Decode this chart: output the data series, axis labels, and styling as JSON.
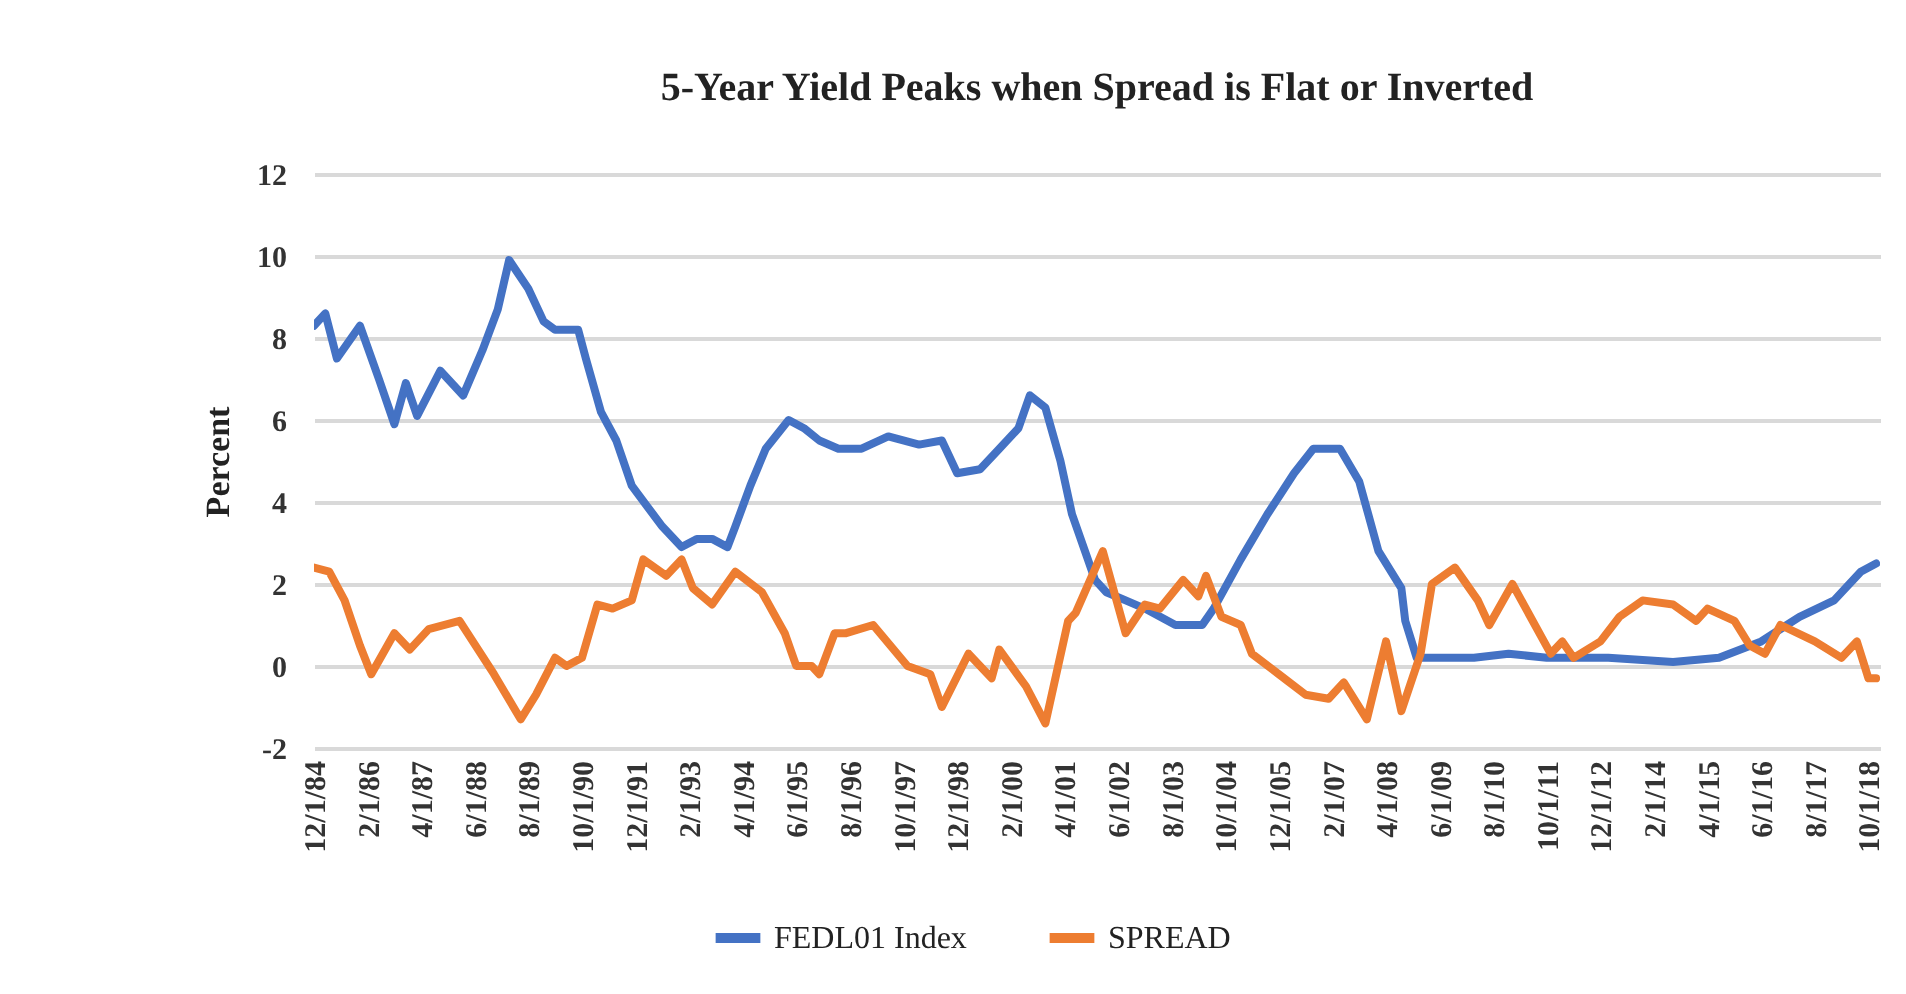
{
  "chart_data": {
    "type": "line",
    "title": "5-Year Yield Peaks when Spread is Flat or Inverted",
    "ylabel": "Percent",
    "xlim": [
      "1984-12",
      "2019-01"
    ],
    "ylim": [
      -2,
      12
    ],
    "yticks": [
      -2,
      0,
      2,
      4,
      6,
      8,
      10,
      12
    ],
    "xticks": [
      {
        "value": "1984-12-01",
        "label": "12/1/84"
      },
      {
        "value": "1986-02-01",
        "label": "2/1/86"
      },
      {
        "value": "1987-04-01",
        "label": "4/1/87"
      },
      {
        "value": "1988-06-01",
        "label": "6/1/88"
      },
      {
        "value": "1989-08-01",
        "label": "8/1/89"
      },
      {
        "value": "1990-10-01",
        "label": "10/1/90"
      },
      {
        "value": "1991-12-01",
        "label": "12/1/91"
      },
      {
        "value": "1993-02-01",
        "label": "2/1/93"
      },
      {
        "value": "1994-04-01",
        "label": "4/1/94"
      },
      {
        "value": "1995-06-01",
        "label": "6/1/95"
      },
      {
        "value": "1996-08-01",
        "label": "8/1/96"
      },
      {
        "value": "1997-10-01",
        "label": "10/1/97"
      },
      {
        "value": "1998-12-01",
        "label": "12/1/98"
      },
      {
        "value": "2000-02-01",
        "label": "2/1/00"
      },
      {
        "value": "2001-04-01",
        "label": "4/1/01"
      },
      {
        "value": "2002-06-01",
        "label": "6/1/02"
      },
      {
        "value": "2003-08-01",
        "label": "8/1/03"
      },
      {
        "value": "2004-10-01",
        "label": "10/1/04"
      },
      {
        "value": "2005-12-01",
        "label": "12/1/05"
      },
      {
        "value": "2007-02-01",
        "label": "2/1/07"
      },
      {
        "value": "2008-04-01",
        "label": "4/1/08"
      },
      {
        "value": "2009-06-01",
        "label": "6/1/09"
      },
      {
        "value": "2010-08-01",
        "label": "8/1/10"
      },
      {
        "value": "2011-10-01",
        "label": "10/1/11"
      },
      {
        "value": "2012-12-01",
        "label": "12/1/12"
      },
      {
        "value": "2014-02-01",
        "label": "2/1/14"
      },
      {
        "value": "2015-04-01",
        "label": "4/1/15"
      },
      {
        "value": "2016-06-01",
        "label": "6/1/16"
      },
      {
        "value": "2017-08-01",
        "label": "8/1/17"
      },
      {
        "value": "2018-10-01",
        "label": "10/1/18"
      }
    ],
    "grid": "y",
    "legend": "bottom",
    "line_style": "solid",
    "series": [
      {
        "name": "FEDL01 Index",
        "color": "#4472c4",
        "x": [
          "1984-12",
          "1985-03",
          "1985-06",
          "1985-12",
          "1986-05",
          "1986-09",
          "1986-12",
          "1987-03",
          "1987-09",
          "1988-03",
          "1988-08",
          "1988-12",
          "1989-03",
          "1989-08",
          "1989-12",
          "1990-03",
          "1990-09",
          "1990-11",
          "1991-03",
          "1991-07",
          "1991-11",
          "1992-03",
          "1992-07",
          "1992-12",
          "1993-04",
          "1993-08",
          "1993-12",
          "1994-02",
          "1994-06",
          "1994-10",
          "1995-04",
          "1995-08",
          "1995-12",
          "1996-05",
          "1996-11",
          "1997-06",
          "1998-02",
          "1998-08",
          "1998-12",
          "1999-06",
          "1999-11",
          "2000-04",
          "2000-07",
          "2000-11",
          "2001-03",
          "2001-06",
          "2001-12",
          "2002-03",
          "2002-08",
          "2003-01",
          "2003-09",
          "2004-04",
          "2004-07",
          "2005-02",
          "2005-09",
          "2006-04",
          "2006-09",
          "2007-04",
          "2007-09",
          "2008-02",
          "2008-08",
          "2008-09",
          "2008-12",
          "2009-06",
          "2010-03",
          "2010-12",
          "2011-10",
          "2013-02",
          "2014-07",
          "2015-07",
          "2016-06",
          "2017-04",
          "2018-01",
          "2018-08",
          "2018-12"
        ],
        "values": [
          8.3,
          8.6,
          7.5,
          8.3,
          7.0,
          5.9,
          6.9,
          6.1,
          7.2,
          6.6,
          7.7,
          8.7,
          9.9,
          9.2,
          8.4,
          8.2,
          8.2,
          7.5,
          6.2,
          5.5,
          4.4,
          3.9,
          3.4,
          2.9,
          3.1,
          3.1,
          2.9,
          3.4,
          4.4,
          5.3,
          6.0,
          5.8,
          5.5,
          5.3,
          5.3,
          5.6,
          5.4,
          5.5,
          4.7,
          4.8,
          5.3,
          5.8,
          6.6,
          6.3,
          5.0,
          3.7,
          2.1,
          1.8,
          1.6,
          1.4,
          1.0,
          1.0,
          1.4,
          2.6,
          3.7,
          4.7,
          5.3,
          5.3,
          4.5,
          2.8,
          1.9,
          1.1,
          0.2,
          0.2,
          0.2,
          0.3,
          0.2,
          0.2,
          0.1,
          0.2,
          0.6,
          1.2,
          1.6,
          2.3,
          2.5
        ]
      },
      {
        "name": "SPREAD",
        "color": "#ed7d31",
        "x": [
          "1984-12",
          "1985-04",
          "1985-08",
          "1985-12",
          "1986-03",
          "1986-09",
          "1987-01",
          "1987-06",
          "1988-02",
          "1988-11",
          "1989-06",
          "1989-10",
          "1990-03",
          "1990-06",
          "1990-10",
          "1991-02",
          "1991-06",
          "1991-11",
          "1992-02",
          "1992-08",
          "1992-12",
          "1993-03",
          "1993-08",
          "1994-02",
          "1994-09",
          "1995-03",
          "1995-06",
          "1995-10",
          "1995-12",
          "1996-04",
          "1996-07",
          "1997-02",
          "1997-11",
          "1998-05",
          "1998-08",
          "1999-03",
          "1999-09",
          "1999-11",
          "2000-06",
          "2000-11",
          "2001-05",
          "2001-07",
          "2002-02",
          "2002-08",
          "2003-01",
          "2003-05",
          "2003-11",
          "2004-03",
          "2004-05",
          "2004-09",
          "2005-02",
          "2005-05",
          "2005-12",
          "2006-07",
          "2007-01",
          "2007-05",
          "2007-11",
          "2008-04",
          "2008-08",
          "2009-01",
          "2009-04",
          "2009-10",
          "2010-04",
          "2010-07",
          "2011-01",
          "2011-11",
          "2012-02",
          "2012-05",
          "2012-12",
          "2013-05",
          "2013-11",
          "2014-07",
          "2015-01",
          "2015-04",
          "2015-11",
          "2016-03",
          "2016-07",
          "2016-11",
          "2017-08",
          "2018-03",
          "2018-07",
          "2018-10",
          "2018-12"
        ],
        "values": [
          2.4,
          2.3,
          1.6,
          0.5,
          -0.2,
          0.8,
          0.4,
          0.9,
          1.1,
          -0.2,
          -1.3,
          -0.7,
          0.2,
          0.0,
          0.2,
          1.5,
          1.4,
          1.6,
          2.6,
          2.2,
          2.6,
          1.9,
          1.5,
          2.3,
          1.8,
          0.8,
          0.0,
          0.0,
          -0.2,
          0.8,
          0.8,
          1.0,
          0.0,
          -0.2,
          -1.0,
          0.3,
          -0.3,
          0.4,
          -0.5,
          -1.4,
          1.1,
          1.3,
          2.8,
          0.8,
          1.5,
          1.4,
          2.1,
          1.7,
          2.2,
          1.2,
          1.0,
          0.3,
          -0.2,
          -0.7,
          -0.8,
          -0.4,
          -1.3,
          0.6,
          -1.1,
          0.3,
          2.0,
          2.4,
          1.6,
          1.0,
          2.0,
          0.3,
          0.6,
          0.2,
          0.6,
          1.2,
          1.6,
          1.5,
          1.1,
          1.4,
          1.1,
          0.5,
          0.3,
          1.0,
          0.6,
          0.2,
          0.6,
          -0.3,
          -0.3
        ]
      }
    ]
  }
}
